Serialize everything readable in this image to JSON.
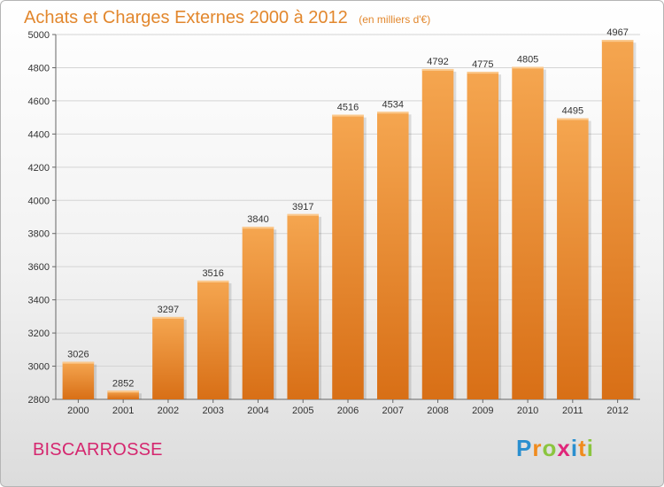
{
  "header": {
    "title": "Achats et Charges Externes 2000 à 2012",
    "unit": "(en milliers d'€)"
  },
  "footer": {
    "commune": "BISCARROSSE",
    "logo_text": "Proxiti",
    "logo_letters": [
      {
        "char": "P",
        "color": "#2a8fcf"
      },
      {
        "char": "r",
        "color": "#f08b1d"
      },
      {
        "char": "o",
        "color": "#8bc53f"
      },
      {
        "char": "x",
        "color": "#e0267a"
      },
      {
        "char": "i",
        "color": "#2a8fcf"
      },
      {
        "char": "t",
        "color": "#f08b1d"
      },
      {
        "char": "i",
        "color": "#8bc53f"
      }
    ]
  },
  "colors": {
    "title": "#e2872d",
    "bar_top": "#f5a650",
    "bar_bottom": "#d86f16",
    "commune": "#d5276f"
  },
  "chart_data": {
    "type": "bar",
    "title": "Achats et Charges Externes 2000 à 2012",
    "categories": [
      "2000",
      "2001",
      "2002",
      "2003",
      "2004",
      "2005",
      "2006",
      "2007",
      "2008",
      "2009",
      "2010",
      "2011",
      "2012"
    ],
    "values": [
      3026,
      2852,
      3297,
      3516,
      3840,
      3917,
      4516,
      4534,
      4792,
      4775,
      4805,
      4495,
      4967
    ],
    "ylim": [
      2800,
      5000
    ],
    "yticks": [
      2800,
      3000,
      3200,
      3400,
      3600,
      3800,
      4000,
      4200,
      4400,
      4600,
      4800,
      5000
    ],
    "grid": true,
    "xlabel": "",
    "ylabel": ""
  }
}
